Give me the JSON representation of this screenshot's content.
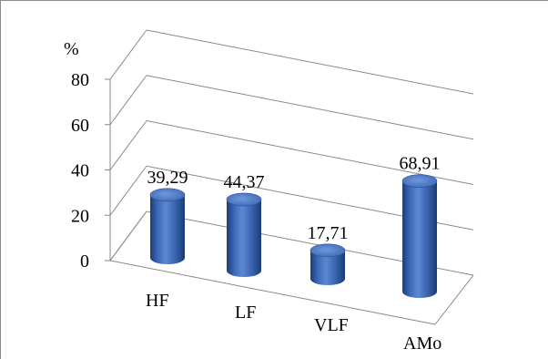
{
  "chart_data": {
    "type": "bar",
    "style": "3d-cylinder",
    "categories": [
      "HF",
      "LF",
      "VLF",
      "AMo"
    ],
    "values": [
      39.29,
      44.37,
      17.71,
      68.91
    ],
    "value_labels": [
      "39,29",
      "44,37",
      "17,71",
      "68,91"
    ],
    "ylabel": "%",
    "yticks": [
      0,
      20,
      40,
      60,
      80
    ],
    "ylim": [
      0,
      80
    ],
    "grid": true,
    "legend": "none",
    "bar_color": "#3a66b3"
  }
}
